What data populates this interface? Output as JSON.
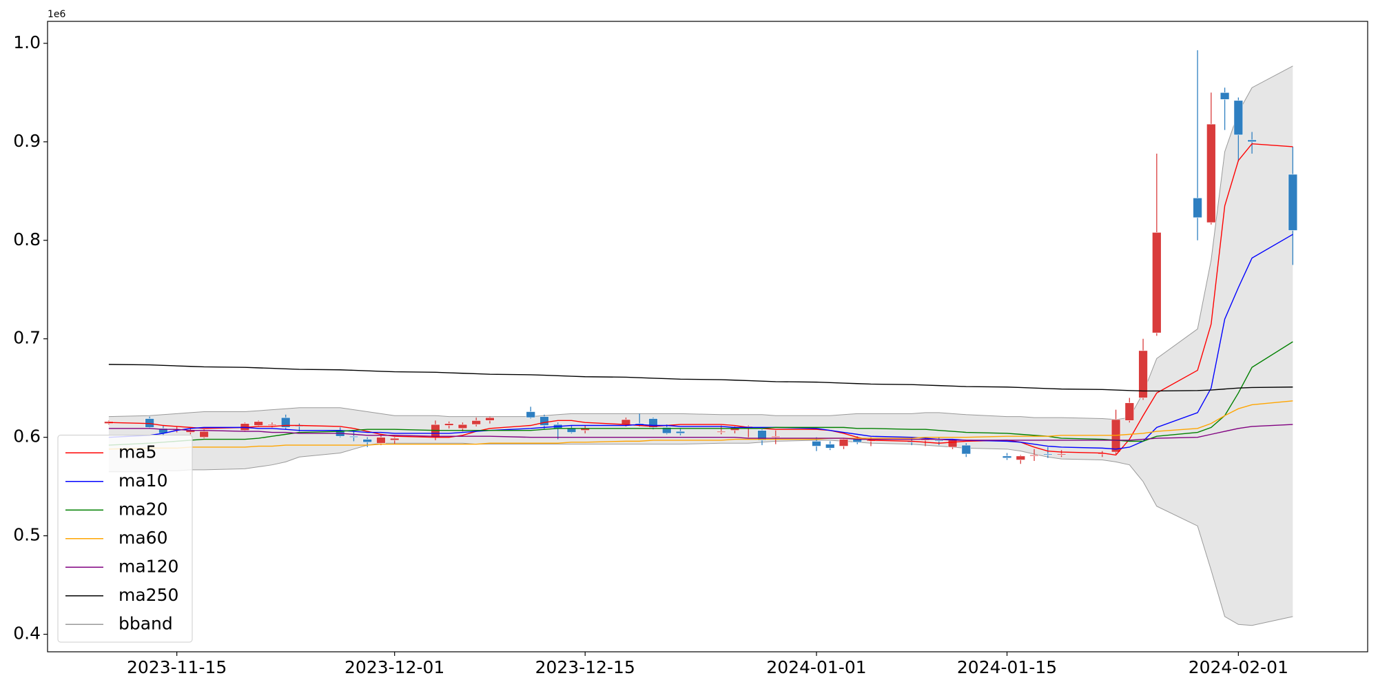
{
  "chart_data": {
    "type": "candlestick",
    "y_offset_label": "1e6",
    "x": [
      "2023-11-10",
      "2023-11-13",
      "2023-11-14",
      "2023-11-15",
      "2023-11-16",
      "2023-11-17",
      "2023-11-20",
      "2023-11-21",
      "2023-11-22",
      "2023-11-23",
      "2023-11-24",
      "2023-11-27",
      "2023-11-28",
      "2023-11-29",
      "2023-11-30",
      "2023-12-01",
      "2023-12-04",
      "2023-12-05",
      "2023-12-06",
      "2023-12-07",
      "2023-12-08",
      "2023-12-11",
      "2023-12-12",
      "2023-12-13",
      "2023-12-14",
      "2023-12-15",
      "2023-12-18",
      "2023-12-19",
      "2023-12-20",
      "2023-12-21",
      "2023-12-22",
      "2023-12-25",
      "2023-12-26",
      "2023-12-27",
      "2023-12-28",
      "2023-12-29",
      "2024-01-01",
      "2024-01-02",
      "2024-01-03",
      "2024-01-04",
      "2024-01-05",
      "2024-01-08",
      "2024-01-09",
      "2024-01-10",
      "2024-01-11",
      "2024-01-12",
      "2024-01-15",
      "2024-01-16",
      "2024-01-17",
      "2024-01-18",
      "2024-01-19",
      "2024-01-22",
      "2024-01-23",
      "2024-01-24",
      "2024-01-25",
      "2024-01-26",
      "2024-01-29",
      "2024-01-30",
      "2024-01-31",
      "2024-02-01",
      "2024-02-02",
      "2024-02-05"
    ],
    "open": [
      614000,
      619000,
      609000,
      607000,
      605000,
      600000,
      607000,
      612000,
      612000,
      620000,
      612000,
      607000,
      601000,
      598000,
      594000,
      597000,
      600000,
      612000,
      609000,
      613000,
      617000,
      626000,
      621000,
      613000,
      609000,
      607000,
      613000,
      614000,
      619000,
      610000,
      606000,
      605000,
      607000,
      609000,
      607000,
      600000,
      596000,
      593000,
      591000,
      598000,
      596000,
      596000,
      597000,
      597000,
      590000,
      592000,
      581000,
      577000,
      581000,
      583000,
      582000,
      583000,
      585000,
      617000,
      640000,
      706000,
      843000,
      818000,
      950000,
      942000,
      902000,
      867000
    ],
    "high": [
      617000,
      621000,
      612000,
      611000,
      609000,
      608000,
      615000,
      617000,
      615000,
      623000,
      614000,
      610000,
      606000,
      600000,
      602000,
      600000,
      617000,
      616000,
      615000,
      620000,
      621000,
      631000,
      623000,
      615000,
      612000,
      612000,
      620000,
      624000,
      620000,
      613000,
      609000,
      612000,
      611000,
      612000,
      608000,
      607000,
      600000,
      596000,
      599000,
      601000,
      600000,
      600000,
      600000,
      600000,
      598000,
      594000,
      584000,
      582000,
      588000,
      590000,
      587000,
      586000,
      628000,
      640000,
      700000,
      888000,
      993000,
      950000,
      955000,
      945000,
      910000,
      895000
    ],
    "low": [
      613000,
      609000,
      601000,
      605000,
      603000,
      599000,
      606000,
      611000,
      610000,
      608000,
      606000,
      600000,
      596000,
      590000,
      592000,
      593000,
      597000,
      609000,
      606000,
      611000,
      614000,
      619000,
      608000,
      598000,
      604000,
      604000,
      611000,
      611000,
      608000,
      603000,
      602000,
      603000,
      604000,
      600000,
      592000,
      593000,
      586000,
      587000,
      588000,
      593000,
      591000,
      592000,
      591000,
      592000,
      588000,
      580000,
      577000,
      573000,
      576000,
      579000,
      580000,
      580000,
      583000,
      615000,
      638000,
      703000,
      800000,
      816000,
      912000,
      880000,
      888000,
      775000
    ],
    "close": [
      616000,
      610000,
      604000,
      608000,
      607000,
      606000,
      614000,
      616000,
      613000,
      610000,
      611000,
      601000,
      600000,
      595000,
      600000,
      599000,
      613000,
      614000,
      613000,
      617000,
      620000,
      620000,
      612000,
      609000,
      605000,
      609000,
      618000,
      613000,
      610000,
      604000,
      604000,
      606000,
      610000,
      611000,
      597000,
      601000,
      591000,
      589000,
      598000,
      595000,
      597000,
      595000,
      598000,
      596000,
      597000,
      583000,
      579000,
      581000,
      582000,
      582000,
      583000,
      584000,
      618000,
      635000,
      688000,
      808000,
      823000,
      918000,
      943000,
      907000,
      900000,
      810000
    ],
    "up_color": "#d93b3b",
    "down_color": "#2e7fc1",
    "series": [
      {
        "name": "ma5",
        "color": "#ff0000",
        "values": [
          615000,
          614000,
          612000,
          611000,
          610000,
          609000,
          610000,
          611000,
          611000,
          612000,
          612000,
          611000,
          609000,
          606000,
          603000,
          601000,
          600000,
          600000,
          602000,
          606000,
          609000,
          612000,
          615000,
          617000,
          617000,
          615000,
          613000,
          612000,
          611000,
          612000,
          613000,
          613000,
          612000,
          610000,
          609000,
          608000,
          608000,
          607000,
          604000,
          600000,
          597000,
          596000,
          595000,
          594000,
          595000,
          596000,
          597000,
          595000,
          590000,
          586000,
          585000,
          584000,
          582000,
          598000,
          622000,
          645000,
          668000,
          715000,
          835000,
          881000,
          898000,
          895000
        ]
      },
      {
        "name": "ma10",
        "color": "#0000ff",
        "values": [
          600000,
          602000,
          604000,
          607000,
          609000,
          610000,
          610000,
          609000,
          609000,
          608000,
          607000,
          607000,
          606000,
          605000,
          605000,
          604000,
          604000,
          604000,
          605000,
          606000,
          607000,
          609000,
          610000,
          611000,
          612000,
          612000,
          612000,
          613000,
          612000,
          612000,
          611000,
          611000,
          610000,
          610000,
          610000,
          610000,
          609000,
          607000,
          605000,
          603000,
          601000,
          600000,
          599000,
          598000,
          598000,
          597000,
          596000,
          595000,
          593000,
          591000,
          590000,
          589000,
          588000,
          590000,
          596000,
          610000,
          625000,
          650000,
          720000,
          752000,
          782000,
          806000
        ]
      },
      {
        "name": "ma20",
        "color": "#008000",
        "values": [
          592000,
          594000,
          595000,
          596000,
          597000,
          598000,
          598000,
          599000,
          601000,
          603000,
          605000,
          606000,
          607000,
          608000,
          608000,
          608000,
          607000,
          607000,
          607000,
          607000,
          607000,
          607000,
          608000,
          609000,
          609000,
          609000,
          609000,
          609000,
          609000,
          609000,
          609000,
          609000,
          609000,
          609000,
          609000,
          610000,
          610000,
          610000,
          610000,
          609000,
          609000,
          608000,
          608000,
          607000,
          606000,
          605000,
          604000,
          603000,
          602000,
          601000,
          599000,
          598000,
          597000,
          596000,
          596000,
          601000,
          605000,
          610000,
          622000,
          645000,
          671000,
          697000
        ]
      },
      {
        "name": "ma60",
        "color": "#ffa500",
        "values": [
          588000,
          589000,
          589000,
          589000,
          590000,
          590000,
          590000,
          591000,
          591000,
          592000,
          592000,
          592000,
          592000,
          592000,
          593000,
          593000,
          593000,
          593000,
          593000,
          593000,
          594000,
          594000,
          594000,
          594000,
          595000,
          595000,
          596000,
          596000,
          597000,
          597000,
          597000,
          597000,
          598000,
          598000,
          598000,
          598000,
          598000,
          599000,
          599000,
          599000,
          599000,
          599000,
          600000,
          600000,
          600000,
          600000,
          601000,
          601000,
          601000,
          601000,
          602000,
          602000,
          602000,
          603000,
          604000,
          606000,
          609000,
          614000,
          622000,
          629000,
          633000,
          637000
        ]
      },
      {
        "name": "ma120",
        "color": "#800080",
        "values": [
          609000,
          609000,
          608000,
          608000,
          607000,
          607000,
          606000,
          606000,
          605000,
          605000,
          604000,
          604000,
          603000,
          602000,
          602000,
          602000,
          601000,
          601000,
          601000,
          601000,
          601000,
          600000,
          600000,
          600000,
          600000,
          600000,
          600000,
          600000,
          600000,
          600000,
          600000,
          600000,
          600000,
          599000,
          599000,
          599000,
          599000,
          599000,
          599000,
          598000,
          598000,
          598000,
          598000,
          598000,
          597000,
          597000,
          597000,
          597000,
          597000,
          597000,
          597000,
          597000,
          597000,
          597000,
          598000,
          599000,
          600000,
          603000,
          606000,
          609000,
          611000,
          613000
        ]
      },
      {
        "name": "ma250",
        "color": "#000000",
        "values": [
          674000,
          673500,
          673000,
          672500,
          672000,
          671500,
          671000,
          670500,
          670000,
          669500,
          669000,
          668500,
          668000,
          667500,
          667000,
          666500,
          666000,
          665500,
          665000,
          664500,
          664000,
          663500,
          663000,
          662500,
          662000,
          661500,
          661000,
          660500,
          660000,
          659500,
          659000,
          658500,
          658000,
          657500,
          657000,
          656500,
          656000,
          655500,
          655000,
          654500,
          654000,
          653500,
          653000,
          652500,
          652000,
          651500,
          651000,
          650500,
          650000,
          649500,
          649000,
          648500,
          648000,
          647500,
          647000,
          647000,
          647500,
          648000,
          649000,
          650000,
          650500,
          651000
        ]
      }
    ],
    "bband": {
      "name": "bband",
      "color": "#999999",
      "fill": "#e3e3e3",
      "upper": [
        621000,
        622000,
        623000,
        624000,
        625000,
        626000,
        626000,
        627000,
        628000,
        629000,
        630000,
        630000,
        628000,
        626000,
        624000,
        622000,
        622000,
        621000,
        621000,
        621000,
        621000,
        621000,
        622000,
        623000,
        624000,
        624000,
        624000,
        624000,
        624000,
        624000,
        624000,
        623000,
        623000,
        623000,
        623000,
        622000,
        622000,
        622000,
        623000,
        624000,
        624000,
        624000,
        625000,
        625000,
        624000,
        623000,
        621000,
        621000,
        620000,
        620000,
        620000,
        619000,
        618000,
        620000,
        645000,
        680000,
        710000,
        780000,
        890000,
        930000,
        955000,
        977000
      ],
      "lower": [
        565000,
        565000,
        566000,
        566000,
        567000,
        567000,
        568000,
        570000,
        572000,
        575000,
        580000,
        584000,
        588000,
        592000,
        594000,
        594000,
        594000,
        594000,
        594000,
        593000,
        593000,
        593000,
        593000,
        593000,
        593000,
        593000,
        593000,
        593000,
        593000,
        593000,
        593000,
        594000,
        594000,
        594000,
        595000,
        596000,
        597000,
        597000,
        596000,
        595000,
        594000,
        593000,
        592000,
        591000,
        590000,
        589000,
        588000,
        586000,
        583000,
        580000,
        578000,
        577000,
        575000,
        572000,
        555000,
        530000,
        510000,
        465000,
        418000,
        410000,
        409000,
        418000
      ]
    },
    "xlim": [
      "2023-11-05T12:00:00Z",
      "2024-02-10T12:00:00Z"
    ],
    "xticks": [
      "2023-11-15",
      "2023-12-01",
      "2023-12-15",
      "2024-01-01",
      "2024-01-15",
      "2024-02-01"
    ],
    "ylim": [
      382200,
      1022300
    ],
    "yticks": [
      {
        "value": 400000,
        "label": "0.4"
      },
      {
        "value": 500000,
        "label": "0.5"
      },
      {
        "value": 600000,
        "label": "0.6"
      },
      {
        "value": 700000,
        "label": "0.7"
      },
      {
        "value": 800000,
        "label": "0.8"
      },
      {
        "value": 900000,
        "label": "0.9"
      },
      {
        "value": 1000000,
        "label": "1.0"
      }
    ],
    "grid": false,
    "legend": "lower left"
  }
}
